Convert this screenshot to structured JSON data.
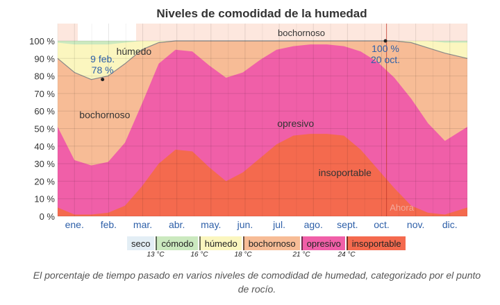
{
  "chart_data": {
    "type": "area",
    "title": "Niveles de comodidad de la humedad",
    "xlabel": "",
    "ylabel": "",
    "ylim": [
      0,
      100
    ],
    "y_ticks": [
      "0 %",
      "10 %",
      "20 %",
      "30 %",
      "40 %",
      "50 %",
      "60 %",
      "70 %",
      "80 %",
      "90 %",
      "100 %"
    ],
    "months": [
      "ene.",
      "feb.",
      "mar.",
      "abr.",
      "may.",
      "jun.",
      "jul.",
      "ago.",
      "sept.",
      "oct.",
      "nov.",
      "dic."
    ],
    "x_day": [
      0,
      15,
      30,
      45,
      60,
      75,
      90,
      105,
      120,
      135,
      150,
      165,
      180,
      195,
      210,
      225,
      240,
      255,
      270,
      285,
      300,
      315,
      330,
      345,
      365
    ],
    "bands": [
      {
        "name": "insoportable",
        "color": "#f46a4e",
        "upper": [
          5,
          1,
          1,
          2,
          6,
          17,
          30,
          38,
          37,
          28,
          20,
          25,
          33,
          41,
          46,
          47,
          47,
          46,
          38,
          27,
          16,
          6,
          2,
          1,
          5
        ]
      },
      {
        "name": "opresivo",
        "color": "#f05fa8",
        "upper": [
          51,
          32,
          29,
          31,
          42,
          64,
          87,
          95,
          94,
          86,
          79,
          82,
          89,
          95,
          97,
          98,
          98,
          97,
          94,
          88,
          79,
          67,
          53,
          43,
          51
        ]
      },
      {
        "name": "bochornoso",
        "color": "#f7bc96",
        "upper": [
          90,
          82,
          78,
          80,
          87,
          95,
          99,
          100,
          100,
          100,
          100,
          100,
          100,
          100,
          100,
          100,
          100,
          100,
          100,
          100,
          100,
          99,
          96,
          93,
          90
        ]
      },
      {
        "name": "húmedo",
        "color": "#fbf6bf",
        "upper": [
          99,
          98,
          98,
          98,
          99,
          100,
          100,
          100,
          100,
          100,
          100,
          100,
          100,
          100,
          100,
          100,
          100,
          100,
          100,
          100,
          100,
          100,
          100,
          99,
          99
        ]
      },
      {
        "name": "cómodo",
        "color": "#cbe9bf",
        "upper": [
          100,
          100,
          100,
          100,
          100,
          100,
          100,
          100,
          100,
          100,
          100,
          100,
          100,
          100,
          100,
          100,
          100,
          100,
          100,
          100,
          100,
          100,
          100,
          100,
          100
        ]
      }
    ],
    "top_strip": {
      "label": "bochornoso"
    },
    "annotations": [
      {
        "day": 40,
        "value": 78,
        "text1": "9 feb.",
        "text2": "78 %"
      },
      {
        "day": 292,
        "value": 100,
        "text1": "100 %",
        "text2": "20 oct."
      }
    ],
    "now": {
      "day": 293,
      "label": "Ahora"
    },
    "band_labels": [
      {
        "day": 42,
        "value": 58,
        "text": "bochornoso"
      },
      {
        "day": 68,
        "value": 94,
        "text": "húmedo"
      },
      {
        "day": 212,
        "value": 53,
        "text": "opresivo"
      },
      {
        "day": 256,
        "value": 25,
        "text": "insoportable"
      }
    ],
    "legend": [
      {
        "label": "seco",
        "color": "#e3eef5"
      },
      {
        "label": "cómodo",
        "color": "#cbe9bf"
      },
      {
        "label": "húmedo",
        "color": "#fbf6bf"
      },
      {
        "label": "bochornoso",
        "color": "#f7bc96"
      },
      {
        "label": "opresivo",
        "color": "#f05fa8"
      },
      {
        "label": "insoportable",
        "color": "#f46a4e"
      }
    ],
    "thresholds": [
      "13 °C",
      "16 °C",
      "18 °C",
      "21 °C",
      "24 °C"
    ]
  },
  "caption": "El porcentaje de tiempo pasado en varios niveles de comodidad de humedad, categorizado por el punto de rocío."
}
